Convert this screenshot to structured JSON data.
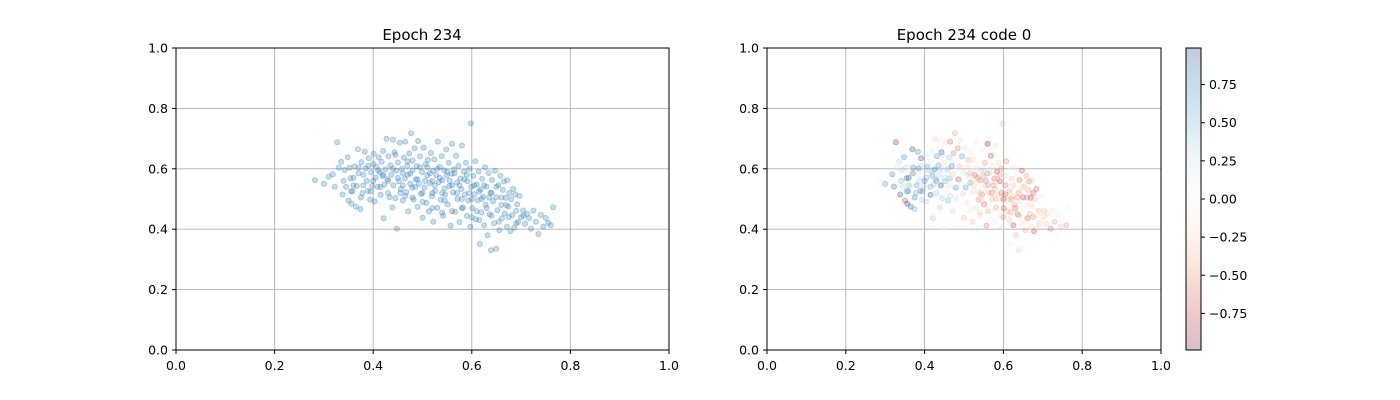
{
  "chart_data": [
    {
      "type": "scatter",
      "title": "Epoch 234",
      "xlim": [
        0.0,
        1.0
      ],
      "ylim": [
        0.0,
        1.0
      ],
      "xticks": [
        "0.0",
        "0.2",
        "0.4",
        "0.6",
        "0.8",
        "1.0"
      ],
      "yticks": [
        "0.0",
        "0.2",
        "0.4",
        "0.6",
        "0.8",
        "1.0"
      ],
      "grid": true,
      "marker_color": "#1f77b4",
      "alpha": 0.25
    },
    {
      "type": "scatter",
      "title": "Epoch 234 code 0",
      "xlim": [
        0.0,
        1.0
      ],
      "ylim": [
        0.0,
        1.0
      ],
      "xticks": [
        "0.0",
        "0.2",
        "0.4",
        "0.6",
        "0.8",
        "1.0"
      ],
      "yticks": [
        "0.0",
        "0.2",
        "0.4",
        "0.6",
        "0.8",
        "1.0"
      ],
      "grid": true,
      "alpha": 0.25,
      "colorscale": "RdBu",
      "color_range": [
        -0.99,
        0.99
      ],
      "colorbar_ticks": [
        "0.75",
        "0.50",
        "0.25",
        "0.00",
        "−0.25",
        "−0.50",
        "−0.75"
      ],
      "colorbar_tick_values": [
        0.75,
        0.5,
        0.25,
        0.0,
        -0.25,
        -0.5,
        -0.75
      ]
    }
  ],
  "points": [
    [
      0.282,
      0.562,
      0.04
    ],
    [
      0.3,
      0.55,
      0.62
    ],
    [
      0.31,
      0.574,
      0.05
    ],
    [
      0.318,
      0.582,
      0.7
    ],
    [
      0.322,
      0.541,
      0.83
    ],
    [
      0.327,
      0.688,
      -0.9
    ],
    [
      0.33,
      0.604,
      0.21
    ],
    [
      0.335,
      0.623,
      0.34
    ],
    [
      0.338,
      0.515,
      0.9
    ],
    [
      0.342,
      0.596,
      0.35
    ],
    [
      0.345,
      0.54,
      0.3
    ],
    [
      0.348,
      0.638,
      0.7
    ],
    [
      0.35,
      0.495,
      -0.73
    ],
    [
      0.352,
      0.604,
      0.3
    ],
    [
      0.354,
      0.569,
      0.82
    ],
    [
      0.356,
      0.484,
      0.94
    ],
    [
      0.358,
      0.526,
      0.68
    ],
    [
      0.36,
      0.57,
      0.87
    ],
    [
      0.362,
      0.608,
      -0.02
    ],
    [
      0.365,
      0.475,
      0.82
    ],
    [
      0.367,
      0.543,
      -0.12
    ],
    [
      0.369,
      0.665,
      0.93
    ],
    [
      0.371,
      0.604,
      0.71
    ],
    [
      0.374,
      0.467,
      0.55
    ],
    [
      0.376,
      0.622,
      0.03
    ],
    [
      0.378,
      0.52,
      0.55
    ],
    [
      0.38,
      0.58,
      0.11
    ],
    [
      0.383,
      0.657,
      0.69
    ],
    [
      0.385,
      0.601,
      0.75
    ],
    [
      0.387,
      0.56,
      0.38
    ],
    [
      0.389,
      0.527,
      0.77
    ],
    [
      0.391,
      0.635,
      0.94
    ],
    [
      0.394,
      0.498,
      0.4
    ],
    [
      0.396,
      0.588,
      0.18
    ],
    [
      0.398,
      0.544,
      0.38
    ],
    [
      0.4,
      0.616,
      0.06
    ],
    [
      0.401,
      0.65,
      0.17
    ],
    [
      0.403,
      0.492,
      0.4
    ],
    [
      0.405,
      0.571,
      0.51
    ],
    [
      0.407,
      0.607,
      0.61
    ],
    [
      0.409,
      0.54,
      -0.2
    ],
    [
      0.411,
      0.638,
      0.15
    ],
    [
      0.413,
      0.588,
      0.1
    ],
    [
      0.415,
      0.514,
      0.92
    ],
    [
      0.417,
      0.624,
      0.06
    ],
    [
      0.419,
      0.576,
      0.36
    ],
    [
      0.42,
      0.659,
      0.2
    ],
    [
      0.421,
      0.436,
      -0.39
    ],
    [
      0.423,
      0.548,
      0.44
    ],
    [
      0.425,
      0.598,
      0.84
    ],
    [
      0.427,
      0.699,
      -0.3
    ],
    [
      0.429,
      0.566,
      0.48
    ],
    [
      0.431,
      0.642,
      0.63
    ],
    [
      0.433,
      0.506,
      0.04
    ],
    [
      0.435,
      0.612,
      0.58
    ],
    [
      0.437,
      0.581,
      0.3
    ],
    [
      0.439,
      0.472,
      0.36
    ],
    [
      0.44,
      0.696,
      -0.09
    ],
    [
      0.441,
      0.545,
      0.96
    ],
    [
      0.443,
      0.655,
      0.93
    ],
    [
      0.445,
      0.503,
      0.39
    ],
    [
      0.447,
      0.594,
      -0.19
    ],
    [
      0.448,
      0.402,
      0.05
    ],
    [
      0.45,
      0.621,
      -0.26
    ],
    [
      0.452,
      0.559,
      0.54
    ],
    [
      0.454,
      0.686,
      -0.21
    ],
    [
      0.456,
      0.533,
      0.05
    ],
    [
      0.458,
      0.6,
      0.43
    ],
    [
      0.46,
      0.495,
      0.51
    ],
    [
      0.462,
      0.637,
      0.42
    ],
    [
      0.464,
      0.568,
      0.54
    ],
    [
      0.465,
      0.69,
      -0.59
    ],
    [
      0.467,
      0.523,
      0.0
    ],
    [
      0.469,
      0.61,
      0.73
    ],
    [
      0.471,
      0.459,
      0.3
    ],
    [
      0.473,
      0.651,
      -0.54
    ],
    [
      0.475,
      0.584,
      0.15
    ],
    [
      0.477,
      0.718,
      -0.45
    ],
    [
      0.479,
      0.538,
      0.72
    ],
    [
      0.48,
      0.627,
      0.06
    ],
    [
      0.482,
      0.498,
      -0.06
    ],
    [
      0.484,
      0.668,
      -0.59
    ],
    [
      0.486,
      0.565,
      -0.81
    ],
    [
      0.488,
      0.609,
      -0.34
    ],
    [
      0.49,
      0.474,
      -0.02
    ],
    [
      0.491,
      0.692,
      0.18
    ],
    [
      0.493,
      0.55,
      -0.12
    ],
    [
      0.495,
      0.641,
      0.61
    ],
    [
      0.497,
      0.517,
      -0.31
    ],
    [
      0.499,
      0.589,
      0.25
    ],
    [
      0.5,
      0.438,
      -0.37
    ],
    [
      0.502,
      0.67,
      -0.25
    ],
    [
      0.504,
      0.538,
      0.62
    ],
    [
      0.506,
      0.615,
      0.05
    ],
    [
      0.508,
      0.487,
      -0.25
    ],
    [
      0.51,
      0.579,
      0.28
    ],
    [
      0.511,
      0.629,
      -0.44
    ],
    [
      0.513,
      0.459,
      -0.05
    ],
    [
      0.515,
      0.553,
      0.57
    ],
    [
      0.517,
      0.652,
      -0.13
    ],
    [
      0.519,
      0.509,
      0.0
    ],
    [
      0.521,
      0.593,
      -0.11
    ],
    [
      0.522,
      0.425,
      -0.36
    ],
    [
      0.524,
      0.631,
      -0.27
    ],
    [
      0.526,
      0.527,
      -0.22
    ],
    [
      0.528,
      0.579,
      -0.68
    ],
    [
      0.53,
      0.471,
      0.24
    ],
    [
      0.531,
      0.69,
      0.13
    ],
    [
      0.533,
      0.556,
      -0.01
    ],
    [
      0.535,
      0.606,
      0.05
    ],
    [
      0.537,
      0.497,
      -0.53
    ],
    [
      0.539,
      0.642,
      -0.01
    ],
    [
      0.54,
      0.562,
      -0.55
    ],
    [
      0.542,
      0.445,
      -0.26
    ],
    [
      0.544,
      0.595,
      0.31
    ],
    [
      0.546,
      0.515,
      -0.56
    ],
    [
      0.548,
      0.664,
      0.12
    ],
    [
      0.549,
      0.577,
      -0.48
    ],
    [
      0.551,
      0.482,
      -0.63
    ],
    [
      0.553,
      0.62,
      -0.49
    ],
    [
      0.555,
      0.543,
      0.21
    ],
    [
      0.557,
      0.412,
      -0.59
    ],
    [
      0.559,
      0.584,
      0.52
    ],
    [
      0.56,
      0.683,
      -0.91
    ],
    [
      0.562,
      0.522,
      -0.34
    ],
    [
      0.564,
      0.598,
      0.21
    ],
    [
      0.566,
      0.458,
      -0.11
    ],
    [
      0.568,
      0.643,
      -0.75
    ],
    [
      0.57,
      0.555,
      -0.16
    ],
    [
      0.571,
      0.5,
      -0.36
    ],
    [
      0.573,
      0.61,
      -0.2
    ],
    [
      0.575,
      0.424,
      0.13
    ],
    [
      0.577,
      0.568,
      -0.6
    ],
    [
      0.579,
      0.533,
      -0.37
    ],
    [
      0.58,
      0.677,
      -0.24
    ],
    [
      0.582,
      0.472,
      -0.42
    ],
    [
      0.584,
      0.59,
      -0.72
    ],
    [
      0.586,
      0.515,
      -0.31
    ],
    [
      0.588,
      0.62,
      -0.25
    ],
    [
      0.59,
      0.444,
      -0.13
    ],
    [
      0.591,
      0.559,
      -0.75
    ],
    [
      0.593,
      0.495,
      -0.17
    ],
    [
      0.595,
      0.6,
      -0.49
    ],
    [
      0.597,
      0.408,
      -0.18
    ],
    [
      0.598,
      0.75,
      -0.37
    ],
    [
      0.599,
      0.54,
      -0.18
    ],
    [
      0.601,
      0.47,
      -0.67
    ],
    [
      0.603,
      0.577,
      -0.29
    ],
    [
      0.605,
      0.516,
      -0.67
    ],
    [
      0.607,
      0.625,
      -0.53
    ],
    [
      0.608,
      0.433,
      0.04
    ],
    [
      0.61,
      0.548,
      0.19
    ],
    [
      0.612,
      0.496,
      -0.34
    ],
    [
      0.614,
      0.591,
      0.01
    ],
    [
      0.616,
      0.351,
      0.1
    ],
    [
      0.618,
      0.531,
      0.1
    ],
    [
      0.619,
      0.456,
      -0.45
    ],
    [
      0.621,
      0.567,
      -0.34
    ],
    [
      0.623,
      0.508,
      -0.31
    ],
    [
      0.625,
      0.413,
      -0.75
    ],
    [
      0.627,
      0.605,
      -0.18
    ],
    [
      0.628,
      0.481,
      -0.44
    ],
    [
      0.63,
      0.541,
      0.01
    ],
    [
      0.632,
      0.38,
      -0.41
    ],
    [
      0.634,
      0.586,
      0.13
    ],
    [
      0.636,
      0.45,
      -0.63
    ],
    [
      0.638,
      0.521,
      -0.39
    ],
    [
      0.639,
      0.33,
      -0.29
    ],
    [
      0.641,
      0.563,
      -0.61
    ],
    [
      0.643,
      0.493,
      -0.17
    ],
    [
      0.645,
      0.42,
      -0.2
    ],
    [
      0.647,
      0.594,
      -0.69
    ],
    [
      0.649,
      0.335,
      -0.07
    ],
    [
      0.65,
      0.506,
      -0.74
    ],
    [
      0.652,
      0.463,
      0.07
    ],
    [
      0.654,
      0.546,
      -0.1
    ],
    [
      0.656,
      0.397,
      -0.41
    ],
    [
      0.658,
      0.577,
      -0.46
    ],
    [
      0.66,
      0.48,
      -0.15
    ],
    [
      0.661,
      0.436,
      -0.66
    ],
    [
      0.663,
      0.53,
      -0.46
    ],
    [
      0.665,
      0.558,
      -0.56
    ],
    [
      0.667,
      0.452,
      -0.42
    ],
    [
      0.669,
      0.504,
      -0.77
    ],
    [
      0.671,
      0.408,
      -0.26
    ],
    [
      0.672,
      0.562,
      -0.28
    ],
    [
      0.674,
      0.475,
      -0.17
    ],
    [
      0.676,
      0.52,
      -0.69
    ],
    [
      0.678,
      0.393,
      -0.73
    ],
    [
      0.68,
      0.499,
      -0.37
    ],
    [
      0.682,
      0.447,
      -0.11
    ],
    [
      0.684,
      0.533,
      -0.68
    ],
    [
      0.686,
      0.405,
      -0.25
    ],
    [
      0.688,
      0.515,
      0.09
    ],
    [
      0.69,
      0.461,
      -0.4
    ],
    [
      0.692,
      0.482,
      0.03
    ],
    [
      0.694,
      0.424,
      -0.03
    ],
    [
      0.697,
      0.51,
      -0.11
    ],
    [
      0.7,
      0.44,
      -0.24
    ],
    [
      0.704,
      0.462,
      -0.35
    ],
    [
      0.708,
      0.418,
      -0.32
    ],
    [
      0.712,
      0.451,
      -0.27
    ],
    [
      0.716,
      0.436,
      0.02
    ],
    [
      0.72,
      0.402,
      -0.59
    ],
    [
      0.725,
      0.462,
      -0.2
    ],
    [
      0.73,
      0.425,
      -0.45
    ],
    [
      0.735,
      0.384,
      -0.05
    ],
    [
      0.74,
      0.447,
      0.14
    ],
    [
      0.745,
      0.409,
      -0.35
    ],
    [
      0.75,
      0.437,
      0.04
    ],
    [
      0.755,
      0.421,
      -0.02
    ],
    [
      0.76,
      0.413,
      -0.46
    ],
    [
      0.765,
      0.473,
      -0.09
    ],
    [
      0.445,
      0.647,
      0.3
    ],
    [
      0.455,
      0.52,
      0.1
    ],
    [
      0.47,
      0.58,
      -0.2
    ],
    [
      0.485,
      0.54,
      0.2
    ],
    [
      0.495,
      0.605,
      -0.1
    ],
    [
      0.505,
      0.56,
      0.0
    ],
    [
      0.515,
      0.585,
      -0.4
    ],
    [
      0.525,
      0.545,
      -0.3
    ],
    [
      0.535,
      0.57,
      -0.5
    ],
    [
      0.545,
      0.535,
      -0.2
    ],
    [
      0.555,
      0.56,
      -0.6
    ],
    [
      0.565,
      0.585,
      -0.3
    ],
    [
      0.575,
      0.545,
      -0.5
    ],
    [
      0.585,
      0.565,
      -0.4
    ],
    [
      0.595,
      0.52,
      -0.6
    ],
    [
      0.605,
      0.545,
      -0.5
    ],
    [
      0.615,
      0.525,
      -0.4
    ],
    [
      0.625,
      0.545,
      -0.3
    ],
    [
      0.635,
      0.505,
      -0.5
    ],
    [
      0.42,
      0.58,
      0.5
    ],
    [
      0.43,
      0.56,
      0.6
    ],
    [
      0.44,
      0.6,
      0.4
    ],
    [
      0.45,
      0.57,
      0.3
    ],
    [
      0.46,
      0.545,
      0.2
    ],
    [
      0.47,
      0.625,
      0.1
    ],
    [
      0.48,
      0.595,
      0.0
    ],
    [
      0.49,
      0.565,
      -0.1
    ],
    [
      0.5,
      0.52,
      0.1
    ],
    [
      0.51,
      0.605,
      -0.2
    ],
    [
      0.52,
      0.56,
      -0.3
    ],
    [
      0.53,
      0.6,
      -0.2
    ],
    [
      0.54,
      0.52,
      -0.4
    ],
    [
      0.55,
      0.59,
      -0.3
    ],
    [
      0.56,
      0.545,
      -0.5
    ],
    [
      0.57,
      0.52,
      -0.6
    ],
    [
      0.58,
      0.5,
      -0.4
    ],
    [
      0.59,
      0.58,
      -0.5
    ],
    [
      0.6,
      0.5,
      -0.7
    ],
    [
      0.61,
      0.46,
      -0.4
    ],
    [
      0.62,
      0.5,
      -0.5
    ],
    [
      0.63,
      0.47,
      -0.6
    ],
    [
      0.64,
      0.52,
      -0.3
    ],
    [
      0.65,
      0.54,
      -0.4
    ],
    [
      0.66,
      0.505,
      -0.5
    ],
    [
      0.67,
      0.48,
      -0.2
    ],
    [
      0.4,
      0.56,
      0.7
    ],
    [
      0.41,
      0.595,
      0.4
    ],
    [
      0.38,
      0.545,
      0.6
    ],
    [
      0.37,
      0.585,
      0.8
    ],
    [
      0.36,
      0.545,
      0.5
    ],
    [
      0.39,
      0.61,
      0.3
    ],
    [
      0.46,
      0.585,
      0.2
    ],
    [
      0.475,
      0.55,
      0.1
    ],
    [
      0.52,
      0.52,
      -0.1
    ],
    [
      0.545,
      0.495,
      -0.3
    ],
    [
      0.58,
      0.47,
      -0.2
    ],
    [
      0.6,
      0.44,
      -0.5
    ],
    [
      0.615,
      0.43,
      -0.3
    ],
    [
      0.64,
      0.445,
      -0.4
    ],
    [
      0.655,
      0.425,
      -0.2
    ],
    [
      0.675,
      0.44,
      -0.5
    ],
    [
      0.69,
      0.42,
      -0.3
    ],
    [
      0.705,
      0.445,
      -0.2
    ],
    [
      0.56,
      0.46,
      -0.4
    ],
    [
      0.54,
      0.455,
      -0.3
    ],
    [
      0.52,
      0.47,
      -0.1
    ],
    [
      0.5,
      0.49,
      0.0
    ],
    [
      0.48,
      0.505,
      0.2
    ],
    [
      0.465,
      0.51,
      0.3
    ],
    [
      0.43,
      0.52,
      0.4
    ],
    [
      0.415,
      0.54,
      0.5
    ],
    [
      0.395,
      0.525,
      0.6
    ],
    [
      0.375,
      0.505,
      0.7
    ],
    [
      0.355,
      0.525,
      0.6
    ],
    [
      0.34,
      0.56,
      0.5
    ]
  ]
}
